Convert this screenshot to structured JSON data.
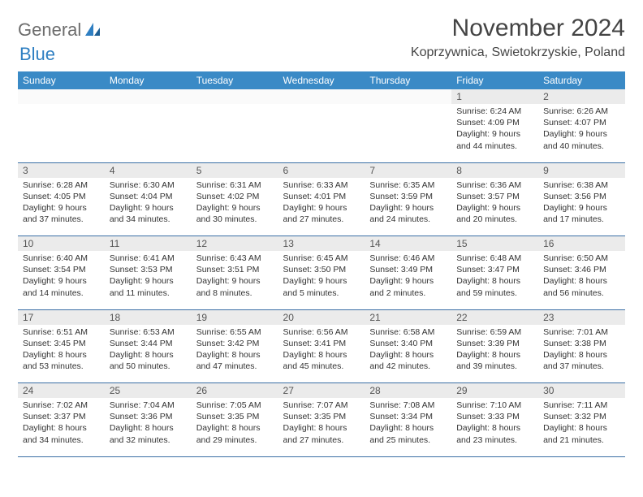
{
  "brand": {
    "word1": "General",
    "word2": "Blue"
  },
  "title": "November 2024",
  "location": "Koprzywnica, Swietokrzyskie, Poland",
  "columns": [
    "Sunday",
    "Monday",
    "Tuesday",
    "Wednesday",
    "Thursday",
    "Friday",
    "Saturday"
  ],
  "colors": {
    "header_bg": "#3a8ac6",
    "header_fg": "#ffffff",
    "daynum_bg": "#ebebeb",
    "rule": "#3a6fa5",
    "logo_blue": "#2f7fc2",
    "logo_gray": "#6d6d6d",
    "text": "#333333"
  },
  "weeks": [
    [
      null,
      null,
      null,
      null,
      null,
      {
        "n": "1",
        "sr": "6:24 AM",
        "ss": "4:09 PM",
        "dl": "9 hours and 44 minutes."
      },
      {
        "n": "2",
        "sr": "6:26 AM",
        "ss": "4:07 PM",
        "dl": "9 hours and 40 minutes."
      }
    ],
    [
      {
        "n": "3",
        "sr": "6:28 AM",
        "ss": "4:05 PM",
        "dl": "9 hours and 37 minutes."
      },
      {
        "n": "4",
        "sr": "6:30 AM",
        "ss": "4:04 PM",
        "dl": "9 hours and 34 minutes."
      },
      {
        "n": "5",
        "sr": "6:31 AM",
        "ss": "4:02 PM",
        "dl": "9 hours and 30 minutes."
      },
      {
        "n": "6",
        "sr": "6:33 AM",
        "ss": "4:01 PM",
        "dl": "9 hours and 27 minutes."
      },
      {
        "n": "7",
        "sr": "6:35 AM",
        "ss": "3:59 PM",
        "dl": "9 hours and 24 minutes."
      },
      {
        "n": "8",
        "sr": "6:36 AM",
        "ss": "3:57 PM",
        "dl": "9 hours and 20 minutes."
      },
      {
        "n": "9",
        "sr": "6:38 AM",
        "ss": "3:56 PM",
        "dl": "9 hours and 17 minutes."
      }
    ],
    [
      {
        "n": "10",
        "sr": "6:40 AM",
        "ss": "3:54 PM",
        "dl": "9 hours and 14 minutes."
      },
      {
        "n": "11",
        "sr": "6:41 AM",
        "ss": "3:53 PM",
        "dl": "9 hours and 11 minutes."
      },
      {
        "n": "12",
        "sr": "6:43 AM",
        "ss": "3:51 PM",
        "dl": "9 hours and 8 minutes."
      },
      {
        "n": "13",
        "sr": "6:45 AM",
        "ss": "3:50 PM",
        "dl": "9 hours and 5 minutes."
      },
      {
        "n": "14",
        "sr": "6:46 AM",
        "ss": "3:49 PM",
        "dl": "9 hours and 2 minutes."
      },
      {
        "n": "15",
        "sr": "6:48 AM",
        "ss": "3:47 PM",
        "dl": "8 hours and 59 minutes."
      },
      {
        "n": "16",
        "sr": "6:50 AM",
        "ss": "3:46 PM",
        "dl": "8 hours and 56 minutes."
      }
    ],
    [
      {
        "n": "17",
        "sr": "6:51 AM",
        "ss": "3:45 PM",
        "dl": "8 hours and 53 minutes."
      },
      {
        "n": "18",
        "sr": "6:53 AM",
        "ss": "3:44 PM",
        "dl": "8 hours and 50 minutes."
      },
      {
        "n": "19",
        "sr": "6:55 AM",
        "ss": "3:42 PM",
        "dl": "8 hours and 47 minutes."
      },
      {
        "n": "20",
        "sr": "6:56 AM",
        "ss": "3:41 PM",
        "dl": "8 hours and 45 minutes."
      },
      {
        "n": "21",
        "sr": "6:58 AM",
        "ss": "3:40 PM",
        "dl": "8 hours and 42 minutes."
      },
      {
        "n": "22",
        "sr": "6:59 AM",
        "ss": "3:39 PM",
        "dl": "8 hours and 39 minutes."
      },
      {
        "n": "23",
        "sr": "7:01 AM",
        "ss": "3:38 PM",
        "dl": "8 hours and 37 minutes."
      }
    ],
    [
      {
        "n": "24",
        "sr": "7:02 AM",
        "ss": "3:37 PM",
        "dl": "8 hours and 34 minutes."
      },
      {
        "n": "25",
        "sr": "7:04 AM",
        "ss": "3:36 PM",
        "dl": "8 hours and 32 minutes."
      },
      {
        "n": "26",
        "sr": "7:05 AM",
        "ss": "3:35 PM",
        "dl": "8 hours and 29 minutes."
      },
      {
        "n": "27",
        "sr": "7:07 AM",
        "ss": "3:35 PM",
        "dl": "8 hours and 27 minutes."
      },
      {
        "n": "28",
        "sr": "7:08 AM",
        "ss": "3:34 PM",
        "dl": "8 hours and 25 minutes."
      },
      {
        "n": "29",
        "sr": "7:10 AM",
        "ss": "3:33 PM",
        "dl": "8 hours and 23 minutes."
      },
      {
        "n": "30",
        "sr": "7:11 AM",
        "ss": "3:32 PM",
        "dl": "8 hours and 21 minutes."
      }
    ]
  ],
  "labels": {
    "sunrise": "Sunrise: ",
    "sunset": "Sunset: ",
    "daylight": "Daylight: "
  }
}
